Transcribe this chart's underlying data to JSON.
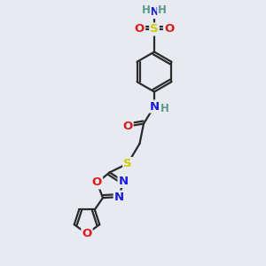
{
  "bg_color": "#e8eaf2",
  "atom_colors": {
    "C": "#1a1a1a",
    "H": "#5a9a8a",
    "N": "#1a1add",
    "O": "#dd1a1a",
    "S": "#cccc00"
  },
  "bond_color": "#2a2a2a",
  "bond_width": 1.6,
  "font_size": 9.5,
  "font_size_small": 8.5
}
